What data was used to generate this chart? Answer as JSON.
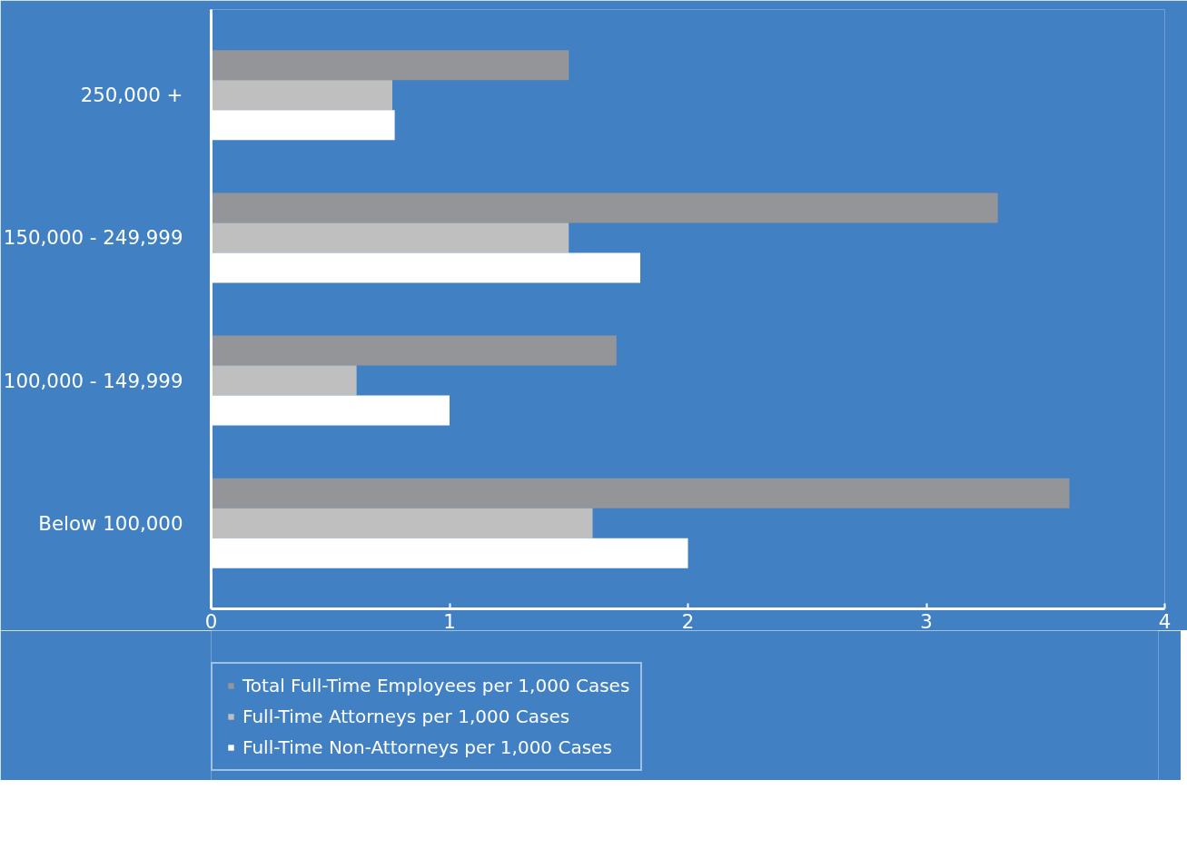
{
  "chart_data": {
    "type": "bar",
    "orientation": "horizontal",
    "categories": [
      "250,000 +",
      "150,000 - 249,999",
      "100,000 - 149,999",
      "Below 100,000"
    ],
    "series": [
      {
        "name": "Total Full-Time Employees per 1,000 Cases",
        "color": "#939598",
        "values": [
          1.5,
          3.3,
          1.7,
          3.6
        ]
      },
      {
        "name": "Full-Time Attorneys per 1,000 Cases",
        "color": "#bfbfbf",
        "values": [
          0.76,
          1.5,
          0.61,
          1.6
        ]
      },
      {
        "name": "Full-Time Non-Attorneys per 1,000 Cases",
        "color": "#ffffff",
        "values": [
          0.77,
          1.8,
          1.0,
          2.0
        ]
      }
    ],
    "xlim": [
      0,
      4
    ],
    "xticks": [
      0,
      1,
      2,
      3,
      4
    ],
    "grid": false,
    "legend": "bottom"
  }
}
